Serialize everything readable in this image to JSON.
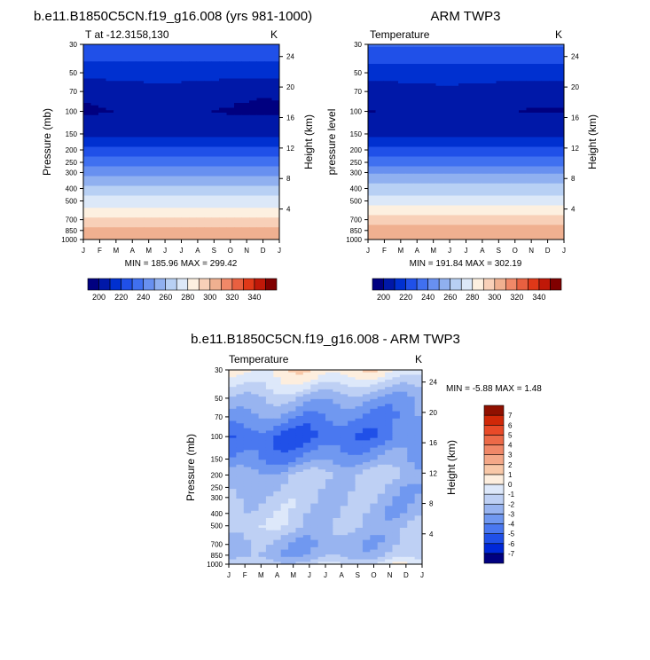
{
  "chart_data": [
    {
      "type": "heatmap",
      "title": "b.e11.B1850C5CN.f19_g16.008 (yrs 981-1000)",
      "subtitle_left": "T at -12.3158,130",
      "subtitle_right": "K",
      "ylabel": "Pressure (mb)",
      "ylabel_right": "Height (km)",
      "x_ticks": [
        "J",
        "F",
        "M",
        "A",
        "M",
        "J",
        "J",
        "A",
        "S",
        "O",
        "N",
        "D",
        "J"
      ],
      "y_ticks": [
        30,
        50,
        70,
        100,
        150,
        200,
        250,
        300,
        400,
        500,
        700,
        850,
        1000
      ],
      "height_ticks": [
        24,
        20,
        16,
        12,
        8,
        4
      ],
      "stats": "MIN = 185.96 MAX = 299.42",
      "colorbar": {
        "orientation": "horizontal",
        "labels": [
          200,
          220,
          240,
          260,
          280,
          300,
          320,
          340
        ]
      },
      "profile": [
        [
          30,
          219
        ],
        [
          50,
          204
        ],
        [
          70,
          194
        ],
        [
          100,
          190
        ],
        [
          150,
          196
        ],
        [
          200,
          212
        ],
        [
          250,
          225
        ],
        [
          300,
          236
        ],
        [
          400,
          252
        ],
        [
          500,
          264
        ],
        [
          700,
          282
        ],
        [
          850,
          292
        ],
        [
          1000,
          297
        ]
      ]
    },
    {
      "type": "heatmap",
      "title": "ARM TWP3",
      "subtitle_left": "Temperature",
      "subtitle_right": "K",
      "ylabel": "pressure level",
      "ylabel_right": "Height (km)",
      "x_ticks": [
        "J",
        "F",
        "M",
        "A",
        "M",
        "J",
        "J",
        "A",
        "S",
        "O",
        "N",
        "D",
        "J"
      ],
      "y_ticks": [
        30,
        50,
        70,
        100,
        150,
        200,
        250,
        300,
        400,
        500,
        700,
        850,
        1000
      ],
      "height_ticks": [
        24,
        20,
        16,
        12,
        8,
        4
      ],
      "stats": "MIN = 191.84 MAX = 302.19",
      "colorbar": {
        "orientation": "horizontal",
        "labels": [
          200,
          220,
          240,
          260,
          280,
          300,
          320,
          340
        ]
      },
      "profile": [
        [
          30,
          221
        ],
        [
          50,
          205
        ],
        [
          70,
          195
        ],
        [
          100,
          191
        ],
        [
          150,
          197
        ],
        [
          200,
          213
        ],
        [
          250,
          226
        ],
        [
          300,
          238
        ],
        [
          400,
          254
        ],
        [
          500,
          266
        ],
        [
          700,
          284
        ],
        [
          850,
          295
        ],
        [
          1000,
          300
        ]
      ]
    },
    {
      "type": "heatmap",
      "title": "b.e11.B1850C5CN.f19_g16.008 - ARM TWP3",
      "subtitle_left": "Temperature",
      "subtitle_right": "K",
      "ylabel": "Pressure (mb)",
      "ylabel_right": "Height (km)",
      "x_ticks": [
        "J",
        "F",
        "M",
        "A",
        "M",
        "J",
        "J",
        "A",
        "S",
        "O",
        "N",
        "D",
        "J"
      ],
      "y_ticks": [
        30,
        50,
        70,
        100,
        150,
        200,
        250,
        300,
        400,
        500,
        700,
        850,
        1000
      ],
      "height_ticks": [
        24,
        20,
        16,
        12,
        8,
        4
      ],
      "stats": "MIN =  -5.88 MAX =  1.48",
      "colorbar": {
        "orientation": "vertical",
        "labels": [
          7,
          6,
          5,
          4,
          3,
          2,
          1,
          0,
          -1,
          -2,
          -3,
          -4,
          -5,
          -6,
          -7
        ]
      },
      "profile": [
        [
          30,
          0.3
        ],
        [
          50,
          -2.5
        ],
        [
          70,
          -3.5
        ],
        [
          100,
          -4.6
        ],
        [
          150,
          -3.6
        ],
        [
          200,
          -2.2
        ],
        [
          250,
          -2.4
        ],
        [
          300,
          -2.2
        ],
        [
          400,
          -2.0
        ],
        [
          500,
          -1.6
        ],
        [
          700,
          -2.3
        ],
        [
          850,
          -2.2
        ],
        [
          1000,
          -0.9
        ]
      ]
    }
  ],
  "colors": {
    "temp_palette": [
      "#000080",
      "#0018a8",
      "#0030d0",
      "#2050e8",
      "#4070f0",
      "#6890f0",
      "#90b0f0",
      "#b8d0f4",
      "#dce8f8",
      "#fdf0e0",
      "#f8d0b8",
      "#f0b090",
      "#f08868",
      "#e86040",
      "#e03818",
      "#c01808",
      "#800000"
    ],
    "diff_palette": [
      "#000080",
      "#0028d8",
      "#2050e8",
      "#4a78f0",
      "#7098f0",
      "#98b4f0",
      "#bed0f4",
      "#dde8fa",
      "#fdeede",
      "#f8c8a8",
      "#f4a888",
      "#f08868",
      "#ec6a48",
      "#e84a28",
      "#d02808",
      "#901000"
    ]
  }
}
